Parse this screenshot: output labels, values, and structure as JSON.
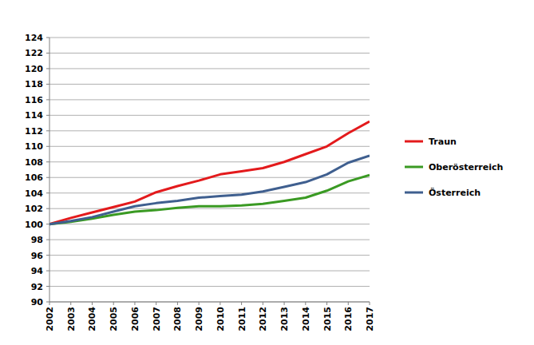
{
  "chart_data": {
    "type": "line",
    "x": [
      2002,
      2003,
      2004,
      2005,
      2006,
      2007,
      2008,
      2009,
      2010,
      2011,
      2012,
      2013,
      2014,
      2015,
      2016,
      2017
    ],
    "series": [
      {
        "name": "Traun",
        "color": "#e31a1c",
        "values": [
          100,
          100.8,
          101.5,
          102.2,
          102.9,
          104.1,
          104.9,
          105.6,
          106.4,
          106.8,
          107.2,
          108.0,
          109.0,
          110.0,
          111.7,
          113.2
        ]
      },
      {
        "name": "Oberösterreich",
        "color": "#3a9a23",
        "values": [
          100,
          100.3,
          100.7,
          101.2,
          101.6,
          101.8,
          102.1,
          102.3,
          102.3,
          102.4,
          102.6,
          103.0,
          103.4,
          104.3,
          105.5,
          106.3
        ]
      },
      {
        "name": "Österreich",
        "color": "#3f5f8f",
        "values": [
          100,
          100.4,
          100.9,
          101.6,
          102.3,
          102.7,
          103.0,
          103.4,
          103.6,
          103.8,
          104.2,
          104.8,
          105.4,
          106.4,
          107.9,
          108.8
        ]
      }
    ],
    "xlim": [
      2002,
      2017
    ],
    "xticks": [
      2002,
      2003,
      2004,
      2005,
      2006,
      2007,
      2008,
      2009,
      2010,
      2011,
      2012,
      2013,
      2014,
      2015,
      2016,
      2017
    ],
    "ylim": [
      90,
      124
    ],
    "yticks": [
      90,
      92,
      94,
      96,
      98,
      100,
      102,
      104,
      106,
      108,
      110,
      112,
      114,
      116,
      118,
      120,
      122,
      124
    ],
    "grid": true,
    "legend": "right"
  }
}
